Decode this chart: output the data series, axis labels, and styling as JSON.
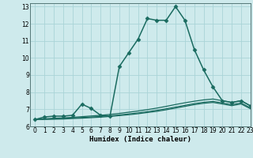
{
  "xlabel": "Humidex (Indice chaleur)",
  "background_color": "#ceeaec",
  "grid_color": "#aad4d7",
  "line_color": "#1a6b60",
  "xlim": [
    -0.5,
    23
  ],
  "ylim": [
    6,
    13.2
  ],
  "yticks": [
    6,
    7,
    8,
    9,
    10,
    11,
    12,
    13
  ],
  "xticks": [
    0,
    1,
    2,
    3,
    4,
    5,
    6,
    7,
    8,
    9,
    10,
    11,
    12,
    13,
    14,
    15,
    16,
    17,
    18,
    19,
    20,
    21,
    22,
    23
  ],
  "series": [
    {
      "x": [
        0,
        1,
        2,
        3,
        4,
        5,
        6,
        7,
        8,
        9,
        10,
        11,
        12,
        13,
        14,
        15,
        16,
        17,
        18,
        19,
        20,
        21,
        22,
        23
      ],
      "y": [
        6.4,
        6.55,
        6.6,
        6.6,
        6.65,
        7.3,
        7.05,
        6.65,
        6.6,
        9.5,
        10.3,
        11.1,
        12.3,
        12.2,
        12.2,
        13.0,
        12.2,
        10.5,
        9.3,
        8.3,
        7.5,
        7.4,
        7.5,
        7.2
      ],
      "marker": "D",
      "markersize": 2.5,
      "linewidth": 1.1
    },
    {
      "x": [
        0,
        1,
        2,
        3,
        4,
        5,
        6,
        7,
        8,
        9,
        10,
        11,
        12,
        13,
        14,
        15,
        16,
        17,
        18,
        19,
        20,
        21,
        22,
        23
      ],
      "y": [
        6.4,
        6.44,
        6.48,
        6.5,
        6.53,
        6.57,
        6.61,
        6.65,
        6.7,
        6.76,
        6.83,
        6.9,
        6.98,
        7.07,
        7.17,
        7.28,
        7.38,
        7.47,
        7.55,
        7.6,
        7.5,
        7.4,
        7.5,
        7.2
      ],
      "marker": null,
      "linewidth": 0.9
    },
    {
      "x": [
        0,
        1,
        2,
        3,
        4,
        5,
        6,
        7,
        8,
        9,
        10,
        11,
        12,
        13,
        14,
        15,
        16,
        17,
        18,
        19,
        20,
        21,
        22,
        23
      ],
      "y": [
        6.4,
        6.42,
        6.44,
        6.46,
        6.49,
        6.52,
        6.55,
        6.58,
        6.62,
        6.67,
        6.73,
        6.79,
        6.86,
        6.94,
        7.03,
        7.13,
        7.23,
        7.33,
        7.41,
        7.46,
        7.37,
        7.27,
        7.37,
        7.08
      ],
      "marker": null,
      "linewidth": 0.9
    },
    {
      "x": [
        0,
        1,
        2,
        3,
        4,
        5,
        6,
        7,
        8,
        9,
        10,
        11,
        12,
        13,
        14,
        15,
        16,
        17,
        18,
        19,
        20,
        21,
        22,
        23
      ],
      "y": [
        6.4,
        6.41,
        6.42,
        6.43,
        6.46,
        6.48,
        6.51,
        6.54,
        6.58,
        6.63,
        6.68,
        6.74,
        6.81,
        6.88,
        6.97,
        7.07,
        7.17,
        7.27,
        7.35,
        7.4,
        7.31,
        7.21,
        7.31,
        7.03
      ],
      "marker": null,
      "linewidth": 0.9
    }
  ]
}
